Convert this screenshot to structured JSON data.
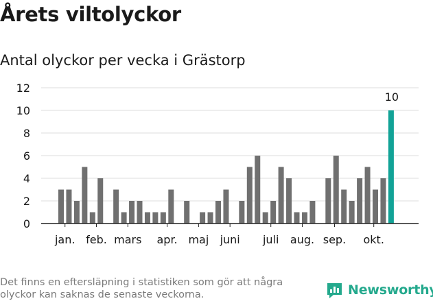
{
  "title": "Årets viltolyckor",
  "subtitle": "Antal olyckor per vecka i Grästorp",
  "footnote": "Det finns en eftersläpning i statistiken som gör att några olyckor kan saknas de senaste veckorna.",
  "brand": {
    "name": "Newsworthy",
    "icon": "newsworthy-logo-icon",
    "color": "#24a98d"
  },
  "colors": {
    "bar": "#707070",
    "highlight": "#12a397",
    "grid": "#dddddd",
    "axis": "#222222",
    "text": "#1a1a1a"
  },
  "chart_data": {
    "type": "bar",
    "title": "Antal olyckor per vecka i Grästorp",
    "xlabel": "",
    "ylabel": "",
    "ylim": [
      0,
      12
    ],
    "yticks": [
      0,
      2,
      4,
      6,
      8,
      10,
      12
    ],
    "grid": true,
    "legend": "none",
    "x": [
      1,
      2,
      3,
      4,
      5,
      6,
      7,
      8,
      9,
      10,
      11,
      12,
      13,
      14,
      15,
      16,
      17,
      18,
      19,
      20,
      21,
      22,
      23,
      24,
      25,
      26,
      27,
      28,
      29,
      30,
      31,
      32,
      33,
      34,
      35,
      36,
      37,
      38,
      39,
      40,
      41,
      42,
      43
    ],
    "values": [
      3,
      3,
      2,
      5,
      1,
      4,
      0,
      3,
      1,
      2,
      2,
      1,
      1,
      1,
      3,
      0,
      2,
      0,
      1,
      1,
      2,
      3,
      0,
      2,
      5,
      6,
      1,
      2,
      5,
      4,
      1,
      1,
      2,
      0,
      4,
      6,
      3,
      2,
      4,
      5,
      3,
      4,
      10
    ],
    "highlight_index": 42,
    "data_labels": [
      {
        "index": 42,
        "text": "10"
      }
    ],
    "month_labels": [
      {
        "label": "jan.",
        "week": 1.5
      },
      {
        "label": "feb.",
        "week": 5.5
      },
      {
        "label": "mars",
        "week": 9.5
      },
      {
        "label": "apr.",
        "week": 14.5
      },
      {
        "label": "maj",
        "week": 18.5
      },
      {
        "label": "juni",
        "week": 22.5
      },
      {
        "label": "juli",
        "week": 27.7
      },
      {
        "label": "aug.",
        "week": 31.7
      },
      {
        "label": "sep.",
        "week": 35.8
      },
      {
        "label": "okt.",
        "week": 40.8
      }
    ]
  }
}
